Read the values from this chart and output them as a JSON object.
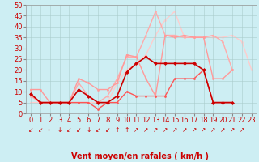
{
  "background_color": "#cdeef3",
  "grid_color": "#aacccc",
  "xlabel": "Vent moyen/en rafales ( km/h )",
  "xlabel_color": "#cc0000",
  "xlabel_fontsize": 7,
  "tick_color": "#cc0000",
  "tick_fontsize": 6,
  "ylim": [
    0,
    50
  ],
  "xlim": [
    -0.5,
    23.5
  ],
  "yticks": [
    0,
    5,
    10,
    15,
    20,
    25,
    30,
    35,
    40,
    45,
    50
  ],
  "xticks": [
    0,
    1,
    2,
    3,
    4,
    5,
    6,
    7,
    8,
    9,
    10,
    11,
    12,
    13,
    14,
    15,
    16,
    17,
    18,
    19,
    20,
    21,
    22,
    23
  ],
  "series": [
    {
      "x": [
        0,
        1,
        2,
        3,
        4,
        5,
        6,
        7,
        8,
        9,
        10,
        11,
        12,
        13,
        14,
        15,
        16,
        17,
        18,
        19,
        20,
        21
      ],
      "y": [
        9,
        5,
        5,
        5,
        5,
        11,
        8,
        5,
        5,
        8,
        19,
        23,
        26,
        23,
        23,
        23,
        23,
        23,
        20,
        5,
        5,
        5
      ],
      "color": "#cc0000",
      "lw": 1.2,
      "marker": "D",
      "markersize": 2.5,
      "zorder": 5
    },
    {
      "x": [
        0,
        1,
        2,
        3,
        4,
        5,
        6,
        7,
        8,
        9,
        10,
        11,
        12,
        13,
        14,
        15,
        16,
        17,
        18,
        19,
        20,
        21
      ],
      "y": [
        9,
        5,
        5,
        5,
        5,
        5,
        5,
        2,
        5,
        5,
        10,
        8,
        8,
        8,
        8,
        16,
        16,
        16,
        20,
        5,
        5,
        5
      ],
      "color": "#ff5555",
      "lw": 1.0,
      "marker": "o",
      "markersize": 2,
      "zorder": 4
    },
    {
      "x": [
        0,
        1,
        2,
        3,
        4,
        5,
        6,
        7,
        8,
        9,
        10,
        11,
        12,
        13,
        14,
        15,
        16,
        17,
        18,
        19,
        20,
        21
      ],
      "y": [
        11,
        11,
        5,
        5,
        5,
        16,
        14,
        11,
        11,
        14,
        27,
        26,
        16,
        8,
        36,
        35,
        36,
        35,
        35,
        16,
        16,
        20
      ],
      "color": "#ff9999",
      "lw": 1.0,
      "marker": "o",
      "markersize": 2,
      "zorder": 3
    },
    {
      "x": [
        0,
        1,
        2,
        3,
        4,
        5,
        6,
        7,
        8,
        9,
        10,
        11,
        12,
        13,
        14,
        15,
        16,
        17,
        18,
        19,
        20,
        21
      ],
      "y": [
        8,
        5,
        5,
        5,
        5,
        14,
        8,
        5,
        8,
        16,
        26,
        26,
        36,
        47,
        36,
        36,
        35,
        35,
        35,
        36,
        33,
        20
      ],
      "color": "#ffaaaa",
      "lw": 1.0,
      "marker": "o",
      "markersize": 2,
      "zorder": 2
    },
    {
      "x": [
        0,
        1,
        2,
        3,
        4,
        5,
        6,
        7,
        8,
        9,
        10,
        11,
        12,
        13,
        14,
        15,
        16,
        17,
        18,
        19,
        20,
        21,
        22,
        23
      ],
      "y": [
        5,
        5,
        5,
        5,
        5,
        5,
        5,
        5,
        5,
        14,
        20,
        23,
        27,
        36,
        43,
        47,
        35,
        35,
        35,
        35,
        35,
        36,
        33,
        20
      ],
      "color": "#ffcccc",
      "lw": 1.0,
      "marker": "o",
      "markersize": 2,
      "zorder": 1
    }
  ],
  "wind_arrows": [
    "↙",
    "↙",
    "←",
    "↓",
    "↙",
    "↙",
    "↓",
    "↙",
    "↙",
    "↑",
    "↑",
    "↗",
    "↗",
    "↗",
    "↗",
    "↗",
    "↗",
    "↗",
    "↗",
    "↗",
    "↗",
    "↗",
    "↗"
  ],
  "arrow_color": "#cc0000",
  "arrow_fontsize": 5.5
}
